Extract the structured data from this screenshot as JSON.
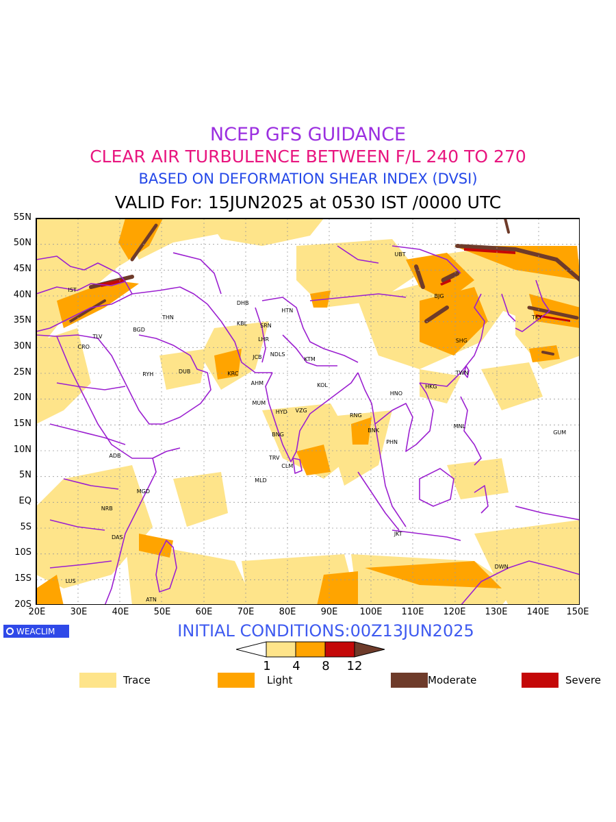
{
  "titles": {
    "line1": "NCEP GFS GUIDANCE",
    "line2": "CLEAR AIR TURBULENCE BETWEEN F/L 240 TO 270",
    "line3": "BASED ON DEFORMATION SHEAR INDEX (DVSI)",
    "line4": "VALID For: 15JUN2025 at 0530 IST /0000 UTC"
  },
  "colors": {
    "title1": "#9b2fe0",
    "title2": "#e8157f",
    "title3": "#2347e8",
    "init": "#3e5af0",
    "boundary": "#9b1fd0",
    "trace": "#fee48a",
    "light": "#ffa400",
    "moderate": "#6e3b2a",
    "severe": "#c40808",
    "brand_bg": "#2f49e8"
  },
  "lat_labels": [
    "55N",
    "50N",
    "45N",
    "40N",
    "35N",
    "30N",
    "25N",
    "20N",
    "15N",
    "10N",
    "5N",
    "EQ",
    "5S",
    "10S",
    "15S",
    "20S"
  ],
  "lon_labels": [
    "20E",
    "30E",
    "40E",
    "50E",
    "60E",
    "70E",
    "80E",
    "90E",
    "100E",
    "110E",
    "120E",
    "130E",
    "140E",
    "150E"
  ],
  "stations": [
    {
      "code": "UBT",
      "lon": 106.9,
      "lat": 47.9
    },
    {
      "code": "IST",
      "lon": 28.9,
      "lat": 41.0
    },
    {
      "code": "BJG",
      "lon": 116.4,
      "lat": 39.9
    },
    {
      "code": "DHB",
      "lon": 69.2,
      "lat": 38.6
    },
    {
      "code": "HTN",
      "lon": 79.9,
      "lat": 37.1
    },
    {
      "code": "THN",
      "lon": 51.4,
      "lat": 35.7
    },
    {
      "code": "KBL",
      "lon": 69.2,
      "lat": 34.5
    },
    {
      "code": "SRN",
      "lon": 74.8,
      "lat": 34.1
    },
    {
      "code": "TKY",
      "lon": 139.7,
      "lat": 35.7
    },
    {
      "code": "BGD",
      "lon": 44.4,
      "lat": 33.3
    },
    {
      "code": "TLV",
      "lon": 34.8,
      "lat": 32.1
    },
    {
      "code": "LHR",
      "lon": 74.3,
      "lat": 31.5
    },
    {
      "code": "SHG",
      "lon": 121.5,
      "lat": 31.2
    },
    {
      "code": "CRO",
      "lon": 31.2,
      "lat": 30.0
    },
    {
      "code": "NDLS",
      "lon": 77.2,
      "lat": 28.6
    },
    {
      "code": "JCB",
      "lon": 73.0,
      "lat": 28.0
    },
    {
      "code": "KTM",
      "lon": 85.3,
      "lat": 27.7
    },
    {
      "code": "RYH",
      "lon": 46.7,
      "lat": 24.7
    },
    {
      "code": "DUB",
      "lon": 55.3,
      "lat": 25.2
    },
    {
      "code": "TWN",
      "lon": 121.5,
      "lat": 25.0
    },
    {
      "code": "KRC",
      "lon": 67.0,
      "lat": 24.9
    },
    {
      "code": "AHM",
      "lon": 72.6,
      "lat": 23.0
    },
    {
      "code": "KOL",
      "lon": 88.4,
      "lat": 22.6
    },
    {
      "code": "HKG",
      "lon": 114.2,
      "lat": 22.3
    },
    {
      "code": "HNO",
      "lon": 105.8,
      "lat": 21.0
    },
    {
      "code": "MUM",
      "lon": 72.9,
      "lat": 19.1
    },
    {
      "code": "HYD",
      "lon": 78.5,
      "lat": 17.4
    },
    {
      "code": "VZG",
      "lon": 83.2,
      "lat": 17.7
    },
    {
      "code": "RNG",
      "lon": 96.2,
      "lat": 16.8
    },
    {
      "code": "MNL",
      "lon": 121.0,
      "lat": 14.6
    },
    {
      "code": "BNK",
      "lon": 100.5,
      "lat": 13.8
    },
    {
      "code": "GUM",
      "lon": 144.8,
      "lat": 13.4
    },
    {
      "code": "BNG",
      "lon": 77.6,
      "lat": 13.0
    },
    {
      "code": "PHN",
      "lon": 104.9,
      "lat": 11.6
    },
    {
      "code": "ADB",
      "lon": 38.7,
      "lat": 9.0
    },
    {
      "code": "TRV",
      "lon": 76.9,
      "lat": 8.5
    },
    {
      "code": "CLM",
      "lon": 79.9,
      "lat": 6.9
    },
    {
      "code": "MLD",
      "lon": 73.5,
      "lat": 4.2
    },
    {
      "code": "MGD",
      "lon": 45.3,
      "lat": 2.0
    },
    {
      "code": "NRB",
      "lon": 36.8,
      "lat": -1.3
    },
    {
      "code": "JKT",
      "lon": 106.8,
      "lat": -6.2
    },
    {
      "code": "DAS",
      "lon": 39.3,
      "lat": -6.8
    },
    {
      "code": "DWN",
      "lon": 130.8,
      "lat": -12.5
    },
    {
      "code": "LUS",
      "lon": 28.3,
      "lat": -15.4
    },
    {
      "code": "ATN",
      "lon": 47.5,
      "lat": -18.9
    }
  ],
  "init_label": "INITIAL CONDITIONS:00Z13JUN2025",
  "brand": "WEACLIM",
  "colorbar": {
    "ticks": [
      "1",
      "4",
      "8",
      "12"
    ]
  },
  "legend": [
    {
      "label": "Trace",
      "color": "#fee48a"
    },
    {
      "label": "Light",
      "color": "#ffa400"
    },
    {
      "label": "Moderate",
      "color": "#6e3b2a"
    },
    {
      "label": "Severe",
      "color": "#c40808"
    }
  ]
}
